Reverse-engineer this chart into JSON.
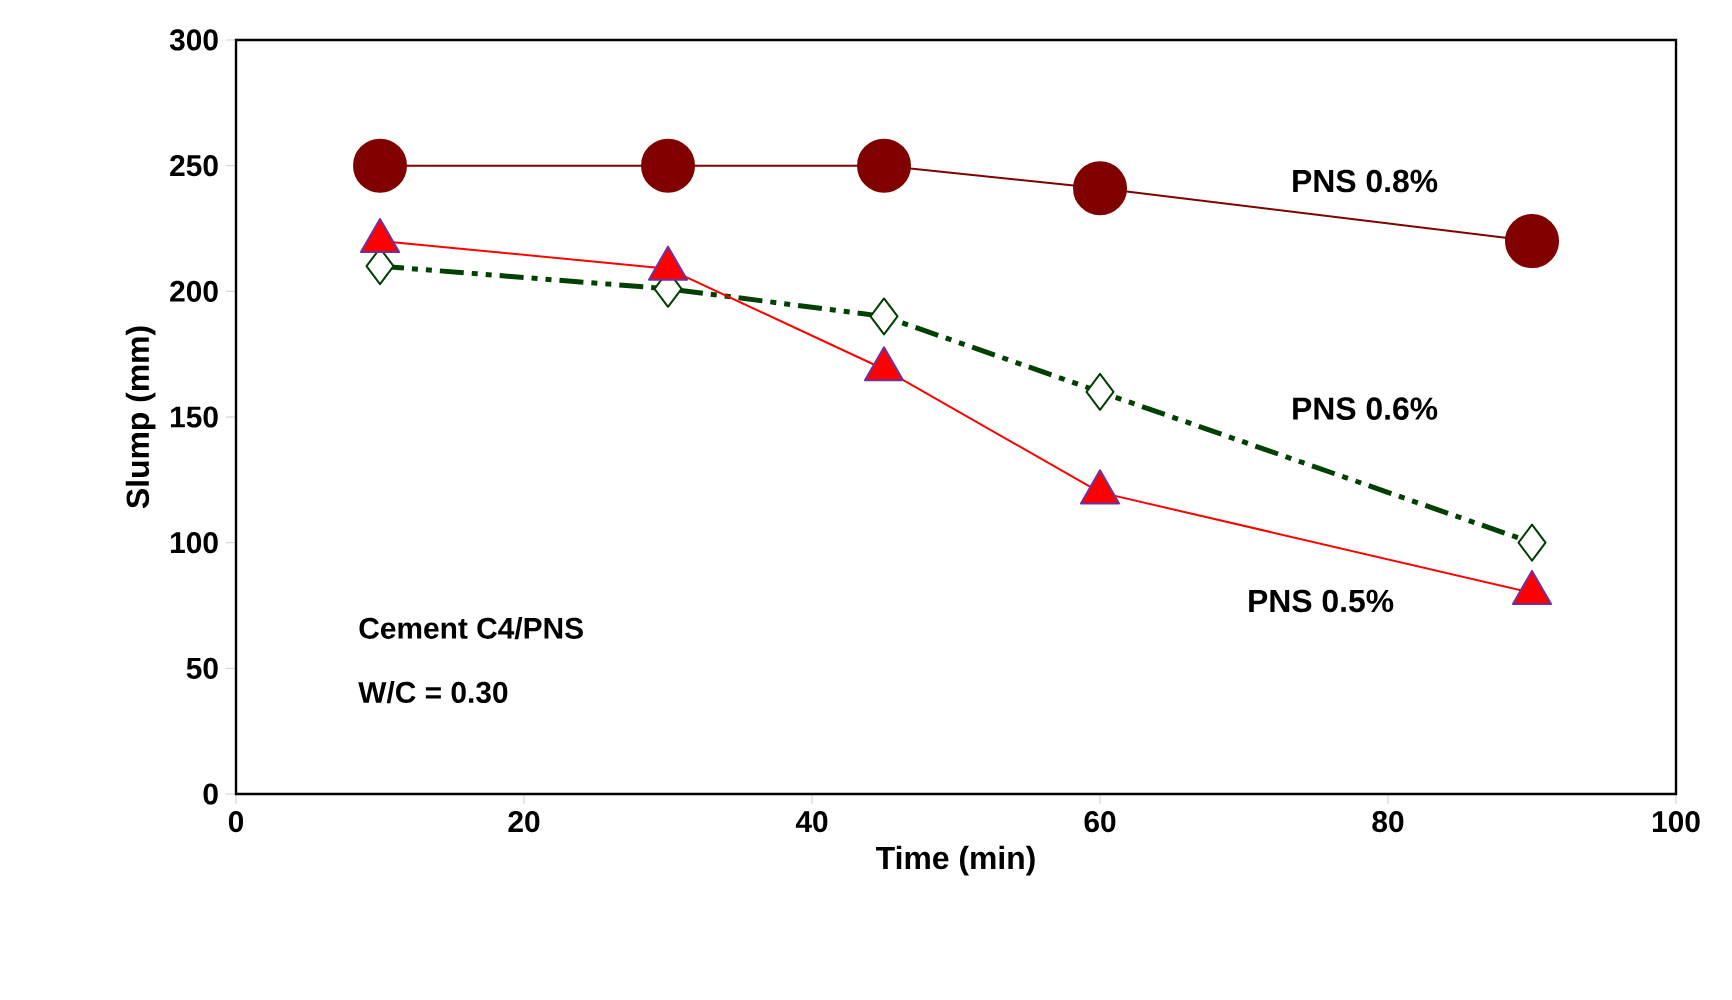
{
  "chart_data": {
    "type": "line",
    "xlabel": "Time (min)",
    "ylabel": "Slump (mm)",
    "xlim": [
      0,
      100
    ],
    "xticks": [
      0,
      20,
      40,
      60,
      80,
      100
    ],
    "ylim": [
      0,
      300
    ],
    "yticks": [
      0,
      50,
      100,
      150,
      200,
      250,
      300
    ],
    "grid": false,
    "legend": false,
    "x": [
      10,
      30,
      45,
      60,
      90
    ],
    "series": [
      {
        "name": "PNS 0.8%",
        "color": "#800000",
        "marker": "circle",
        "line_style": "solid",
        "values": [
          250,
          250,
          250,
          241,
          220
        ]
      },
      {
        "name": "PNS 0.6%",
        "color": "#004000",
        "marker": "diamond",
        "line_style": "dashed",
        "values": [
          210,
          201,
          190,
          160,
          100
        ]
      },
      {
        "name": "PNS 0.5%",
        "color": "#ff0000",
        "marker": "triangle",
        "line_style": "solid",
        "values": [
          220,
          209,
          169,
          120,
          80
        ]
      }
    ],
    "annotations": [
      "Cement C4/PNS",
      "W/C = 0.30"
    ]
  }
}
